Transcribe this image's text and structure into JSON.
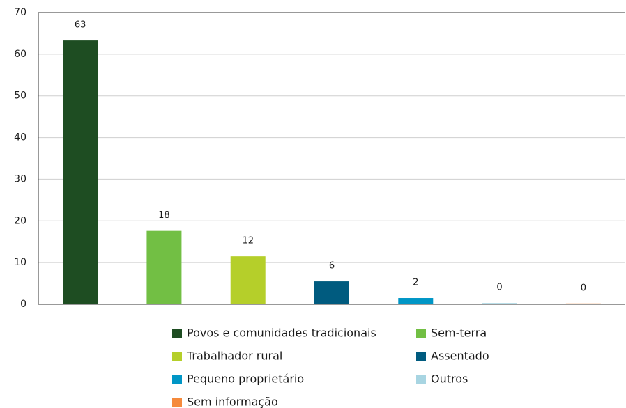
{
  "chart_data": {
    "type": "bar",
    "categories": [
      "Povos e comunidades tradicionais",
      "Sem-terra",
      "Trabalhador rural",
      "Assentado",
      "Pequeno proprietário",
      "Outros",
      "Sem informação"
    ],
    "values": [
      63.3,
      17.6,
      11.5,
      5.5,
      1.5,
      0.3,
      0.2
    ],
    "value_labels": [
      "63",
      "18",
      "12",
      "6",
      "2",
      "0",
      "0"
    ],
    "colors": [
      "#1e4d22",
      "#72bf44",
      "#b5cf2a",
      "#005b7f",
      "#0096c6",
      "#a8d5e2",
      "#f58a3c"
    ],
    "ylim": [
      0,
      70
    ],
    "yticks": [
      0,
      10,
      20,
      30,
      40,
      50,
      60,
      70
    ],
    "grid": true
  }
}
